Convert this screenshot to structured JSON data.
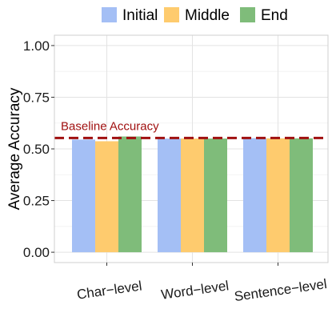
{
  "chart_data": {
    "type": "bar",
    "categories": [
      "Char−level",
      "Word−level",
      "Sentence−level"
    ],
    "series": [
      {
        "name": "Initial",
        "color": "#a4bff5",
        "values": [
          0.545,
          0.55,
          0.552
        ]
      },
      {
        "name": "Middle",
        "color": "#fecb6e",
        "values": [
          0.537,
          0.55,
          0.551
        ]
      },
      {
        "name": "End",
        "color": "#7fbc7a",
        "values": [
          0.56,
          0.55,
          0.551
        ]
      }
    ],
    "xlabel": "",
    "ylabel": "Average Accuracy",
    "ylim": [
      -0.05,
      1.05
    ],
    "yticks": [
      0,
      0.25,
      0.5,
      0.75,
      1
    ],
    "ytick_labels": [
      "0.00",
      "0.25",
      "0.50",
      "0.75",
      "1.00"
    ],
    "grid": true,
    "legend_position": "top",
    "baseline": {
      "label": "Baseline Accuracy",
      "value": 0.553,
      "color": "#a01010"
    }
  }
}
